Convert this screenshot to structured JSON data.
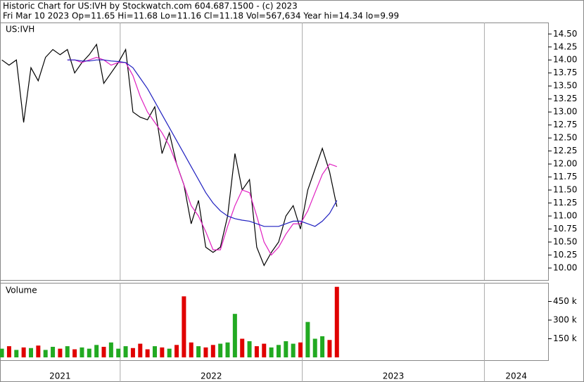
{
  "chart_data": [
    {
      "type": "line",
      "title": "Historic Chart for US:IVH by Stockwatch.com 604.687.1500 - (c) 2023",
      "subtitle": "Fri Mar 10 2023  Op=11.65  Hi=11.68  Lo=11.16  Cl=11.18  Vol=567,634  Year hi=14.34  lo=9.99",
      "label": "US:IVH",
      "x": [
        2021.35,
        2021.39,
        2021.43,
        2021.47,
        2021.51,
        2021.55,
        2021.59,
        2021.63,
        2021.67,
        2021.71,
        2021.75,
        2021.79,
        2021.83,
        2021.87,
        2021.91,
        2021.95,
        2021.99,
        2022.03,
        2022.07,
        2022.11,
        2022.15,
        2022.19,
        2022.23,
        2022.27,
        2022.31,
        2022.35,
        2022.39,
        2022.43,
        2022.47,
        2022.51,
        2022.55,
        2022.59,
        2022.63,
        2022.67,
        2022.71,
        2022.75,
        2022.79,
        2022.83,
        2022.87,
        2022.91,
        2022.95,
        2022.99,
        2023.03,
        2023.07,
        2023.11,
        2023.15,
        2023.19
      ],
      "series": [
        {
          "color": "#000000",
          "values": [
            14.0,
            13.9,
            14.0,
            12.8,
            13.85,
            13.6,
            14.05,
            14.2,
            14.1,
            14.2,
            13.75,
            13.95,
            14.1,
            14.3,
            13.55,
            13.75,
            13.95,
            14.2,
            13.0,
            12.9,
            12.85,
            13.1,
            12.2,
            12.6,
            12.0,
            11.6,
            10.85,
            11.3,
            10.4,
            10.3,
            10.4,
            11.0,
            12.2,
            11.5,
            11.7,
            10.4,
            10.05,
            10.3,
            10.5,
            11.0,
            11.2,
            10.75,
            11.5,
            11.9,
            12.3,
            11.85,
            11.18
          ]
        },
        {
          "color": "#e020c0",
          "values": [
            null,
            null,
            null,
            null,
            null,
            null,
            null,
            null,
            null,
            14.0,
            14.0,
            13.95,
            14.0,
            14.05,
            14.0,
            13.9,
            13.95,
            13.95,
            13.7,
            13.3,
            13.0,
            12.8,
            12.6,
            12.35,
            12.0,
            11.6,
            11.2,
            11.0,
            10.7,
            10.35,
            10.35,
            10.8,
            11.2,
            11.5,
            11.45,
            11.0,
            10.5,
            10.25,
            10.4,
            10.65,
            10.85,
            10.85,
            11.1,
            11.45,
            11.8,
            12.0,
            11.95
          ]
        },
        {
          "color": "#2020c0",
          "values": [
            null,
            null,
            null,
            null,
            null,
            null,
            null,
            null,
            null,
            14.0,
            14.0,
            13.98,
            13.98,
            14.0,
            14.0,
            13.98,
            13.97,
            13.95,
            13.85,
            13.65,
            13.45,
            13.2,
            12.95,
            12.7,
            12.45,
            12.2,
            11.95,
            11.7,
            11.45,
            11.25,
            11.1,
            11.0,
            10.95,
            10.92,
            10.9,
            10.85,
            10.8,
            10.8,
            10.8,
            10.85,
            10.9,
            10.9,
            10.85,
            10.8,
            10.9,
            11.05,
            11.3
          ]
        }
      ],
      "xlim": [
        2021.34,
        2024.35
      ],
      "xticks": [
        2022,
        2023,
        2024
      ],
      "ylim": [
        9.77,
        14.72
      ],
      "yticks": [
        {
          "value": 10,
          "label": "10.00"
        },
        10.25,
        {
          "value": 10.5,
          "label": "10.50"
        },
        10.75,
        {
          "value": 11,
          "label": "11.00"
        },
        11.25,
        {
          "value": 11.5,
          "label": "11.50"
        },
        11.75,
        {
          "value": 12,
          "label": "12.00"
        },
        12.25,
        {
          "value": 12.5,
          "label": "12.50"
        },
        12.75,
        {
          "value": 13,
          "label": "13.00"
        },
        13.25,
        {
          "value": 13.5,
          "label": "13.50"
        },
        13.75,
        {
          "value": 14,
          "label": "14.00"
        },
        14.25,
        {
          "value": 14.5,
          "label": "14.50"
        }
      ]
    },
    {
      "type": "bar",
      "label": "Volume",
      "x": [
        2021.35,
        2021.39,
        2021.43,
        2021.47,
        2021.51,
        2021.55,
        2021.59,
        2021.63,
        2021.67,
        2021.71,
        2021.75,
        2021.79,
        2021.83,
        2021.87,
        2021.91,
        2021.95,
        2021.99,
        2022.03,
        2022.07,
        2022.11,
        2022.15,
        2022.19,
        2022.23,
        2022.27,
        2022.31,
        2022.35,
        2022.39,
        2022.43,
        2022.47,
        2022.51,
        2022.55,
        2022.59,
        2022.63,
        2022.67,
        2022.71,
        2022.75,
        2022.79,
        2022.83,
        2022.87,
        2022.91,
        2022.95,
        2022.99,
        2023.03,
        2023.07,
        2023.11,
        2023.15,
        2023.19
      ],
      "values": [
        70000,
        90000,
        60000,
        80000,
        75000,
        95000,
        60000,
        85000,
        70000,
        90000,
        65000,
        80000,
        70000,
        100000,
        85000,
        120000,
        70000,
        90000,
        75000,
        110000,
        65000,
        90000,
        80000,
        70000,
        100000,
        491000,
        120000,
        90000,
        80000,
        100000,
        110000,
        120000,
        350000,
        150000,
        130000,
        90000,
        110000,
        80000,
        100000,
        130000,
        110000,
        120000,
        285000,
        150000,
        170000,
        140000,
        567634
      ],
      "up_color": "#22aa22",
      "down_color": "#e00000",
      "xlim": [
        2021.34,
        2024.35
      ],
      "xticks": [
        2022,
        2023,
        2024
      ],
      "x_labels": [
        2021,
        2022,
        2023,
        2024
      ],
      "ylim": [
        0,
        600000
      ],
      "yticks": [
        {
          "value": 150000,
          "label": "150 k"
        },
        {
          "value": 300000,
          "label": "300 k"
        },
        {
          "value": 450000,
          "label": "450 k"
        }
      ]
    }
  ]
}
